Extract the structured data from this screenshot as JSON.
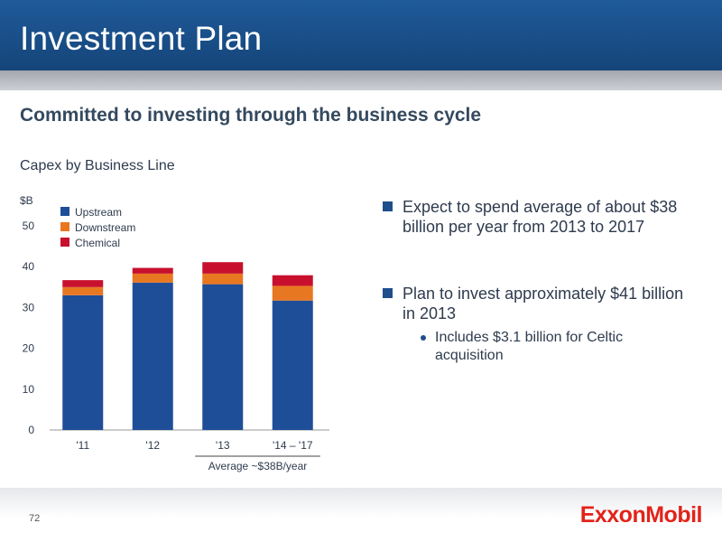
{
  "header": {
    "title": "Investment Plan"
  },
  "subtitle": "Committed to investing through the business cycle",
  "chart_data": {
    "type": "bar",
    "stacked": true,
    "title": "Capex by Business Line",
    "ylabel": "$B",
    "ylim": [
      0,
      50
    ],
    "yticks": [
      0,
      10,
      20,
      30,
      40,
      50
    ],
    "categories": [
      "'11",
      "'12",
      "'13",
      "'14 – '17"
    ],
    "series": [
      {
        "name": "Upstream",
        "color": "#1f4e98",
        "values": [
          33.0,
          36.1,
          35.7,
          31.7
        ]
      },
      {
        "name": "Downstream",
        "color": "#e87722",
        "values": [
          2.0,
          2.2,
          2.6,
          3.6
        ]
      },
      {
        "name": "Chemical",
        "color": "#c8102e",
        "values": [
          1.7,
          1.4,
          2.8,
          2.6
        ]
      }
    ],
    "legend": "top-left",
    "grid": false,
    "annotation": {
      "text": "Average ~$38B/year",
      "span": [
        "'13",
        "'14 – '17"
      ]
    }
  },
  "bullets": [
    {
      "text": "Expect to spend average of about $38 billion per year from 2013 to 2017"
    },
    {
      "text": "Plan to invest approximately $41 billion in 2013"
    }
  ],
  "subbullets": [
    {
      "text": "Includes $3.1 billion for Celtic acquisition"
    }
  ],
  "footer": {
    "page_number": "72",
    "logo": "ExxonMobil"
  },
  "colors": {
    "header_blue": "#1a4f8b",
    "logo_red": "#e2231a",
    "bullet_blue": "#1f4e8c"
  }
}
